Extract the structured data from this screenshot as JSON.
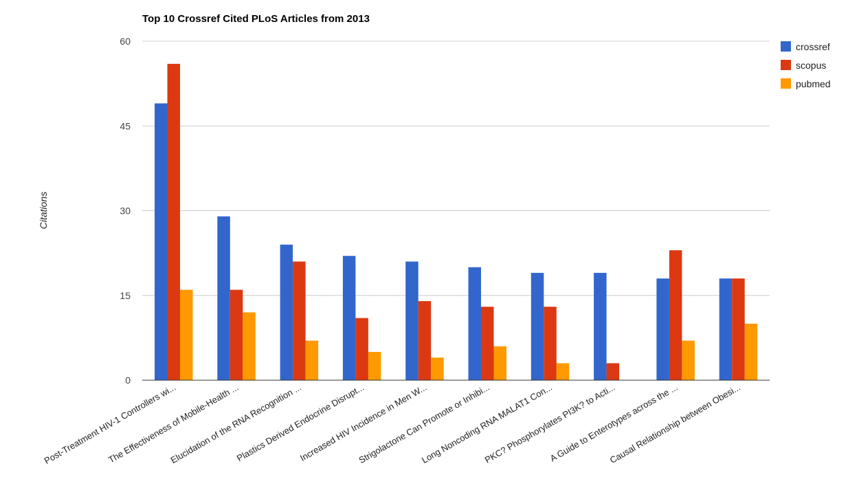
{
  "chart_data": {
    "type": "bar",
    "title": "Top 10 Crossref Cited PLoS Articles from 2013",
    "xlabel": "",
    "ylabel": "Citations",
    "ylim": [
      0,
      60
    ],
    "yticks": [
      0,
      15,
      30,
      45,
      60
    ],
    "grid": true,
    "legend_position": "right",
    "categories": [
      "Post-Treatment HIV-1 Controllers wi...",
      "The Effectiveness of Mobile-Health ...",
      "Elucidation of the RNA Recognition ...",
      "Plastics Derived Endocrine Disrupt...",
      "Increased HIV Incidence in Men W...",
      "Strigolactone Can Promote or Inhibi...",
      "Long Noncoding RNA MALAT1 Con...",
      "PKC? Phosphorylates PI3K? to Acti...",
      "A Guide to Enterotypes across the ...",
      "Causal Relationship between Obesi..."
    ],
    "series": [
      {
        "name": "crossref",
        "color": "#3366cc",
        "values": [
          49,
          29,
          24,
          22,
          21,
          20,
          19,
          19,
          18,
          18
        ]
      },
      {
        "name": "scopus",
        "color": "#dc3912",
        "values": [
          56,
          16,
          21,
          11,
          14,
          13,
          13,
          3,
          23,
          18
        ]
      },
      {
        "name": "pubmed",
        "color": "#ff9900",
        "values": [
          16,
          12,
          7,
          5,
          4,
          6,
          3,
          0,
          7,
          10
        ]
      }
    ]
  }
}
